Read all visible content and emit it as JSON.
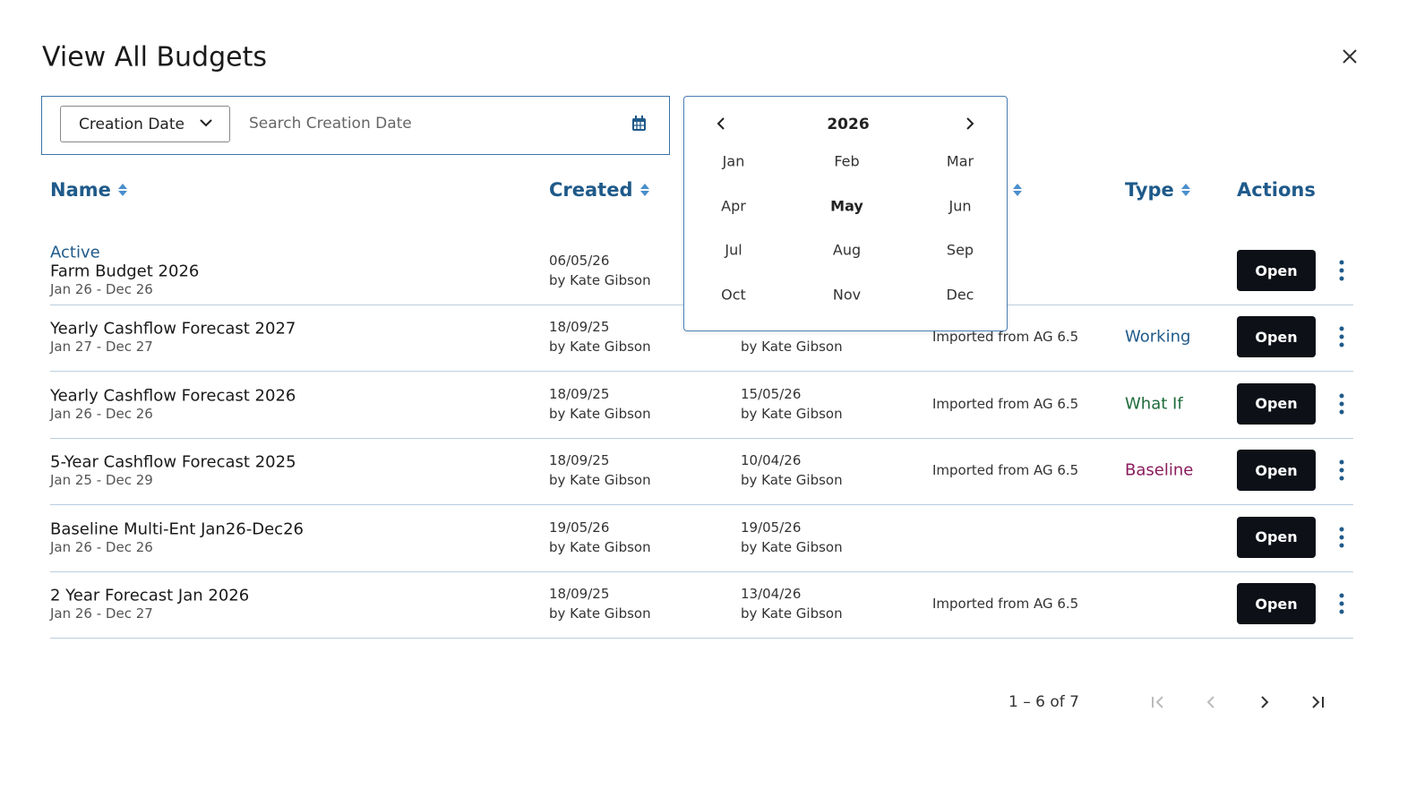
{
  "header": {
    "title": "View All Budgets"
  },
  "filter": {
    "field": "Creation Date",
    "placeholder": "Search Creation Date"
  },
  "calendar": {
    "year": "2026",
    "months": [
      "Jan",
      "Feb",
      "Mar",
      "Apr",
      "May",
      "Jun",
      "Jul",
      "Aug",
      "Sep",
      "Oct",
      "Nov",
      "Dec"
    ],
    "selected": 4
  },
  "table": {
    "columns": {
      "name": "Name",
      "created": "Created",
      "type": "Type",
      "actions": "Actions"
    },
    "rows": [
      {
        "status": "Active",
        "name": "Farm Budget 2026",
        "period": "Jan 26 - Dec 26",
        "created_date": "06/05/26",
        "created_by": "by Kate Gibson",
        "action": "Open"
      },
      {
        "name": "Yearly Cashflow Forecast 2027",
        "period": "Jan 27 - Dec 27",
        "created_date": "18/09/25",
        "created_by": "by Kate Gibson",
        "modified_by": "by Kate Gibson",
        "notes": "Imported from AG 6.5",
        "type": "Working",
        "type_color": "#1f5a8a",
        "action": "Open"
      },
      {
        "name": "Yearly Cashflow Forecast 2026",
        "period": "Jan 26 - Dec 26",
        "created_date": "18/09/25",
        "created_by": "by Kate Gibson",
        "modified_date": "15/05/26",
        "modified_by": "by Kate Gibson",
        "notes": "Imported from AG 6.5",
        "type": "What If",
        "type_color": "#1e6b3a",
        "action": "Open"
      },
      {
        "name": "5-Year Cashflow Forecast 2025",
        "period": "Jan 25 - Dec 29",
        "created_date": "18/09/25",
        "created_by": "by Kate Gibson",
        "modified_date": "10/04/26",
        "modified_by": "by Kate Gibson",
        "notes": "Imported from AG 6.5",
        "type": "Baseline",
        "type_color": "#8a1c5c",
        "action": "Open"
      },
      {
        "name": "Baseline Multi-Ent Jan26-Dec26",
        "period": "Jan 26 - Dec 26",
        "created_date": "19/05/26",
        "created_by": "by Kate Gibson",
        "modified_date": "19/05/26",
        "modified_by": "by Kate Gibson",
        "action": "Open"
      },
      {
        "name": "2 Year Forecast Jan 2026",
        "period": "Jan 26 - Dec 27",
        "created_date": "18/09/25",
        "created_by": "by Kate Gibson",
        "modified_date": "13/04/26",
        "modified_by": "by Kate Gibson",
        "notes": "Imported from AG 6.5",
        "action": "Open"
      }
    ]
  },
  "pagination": {
    "range": "1 – 6 of 7"
  }
}
